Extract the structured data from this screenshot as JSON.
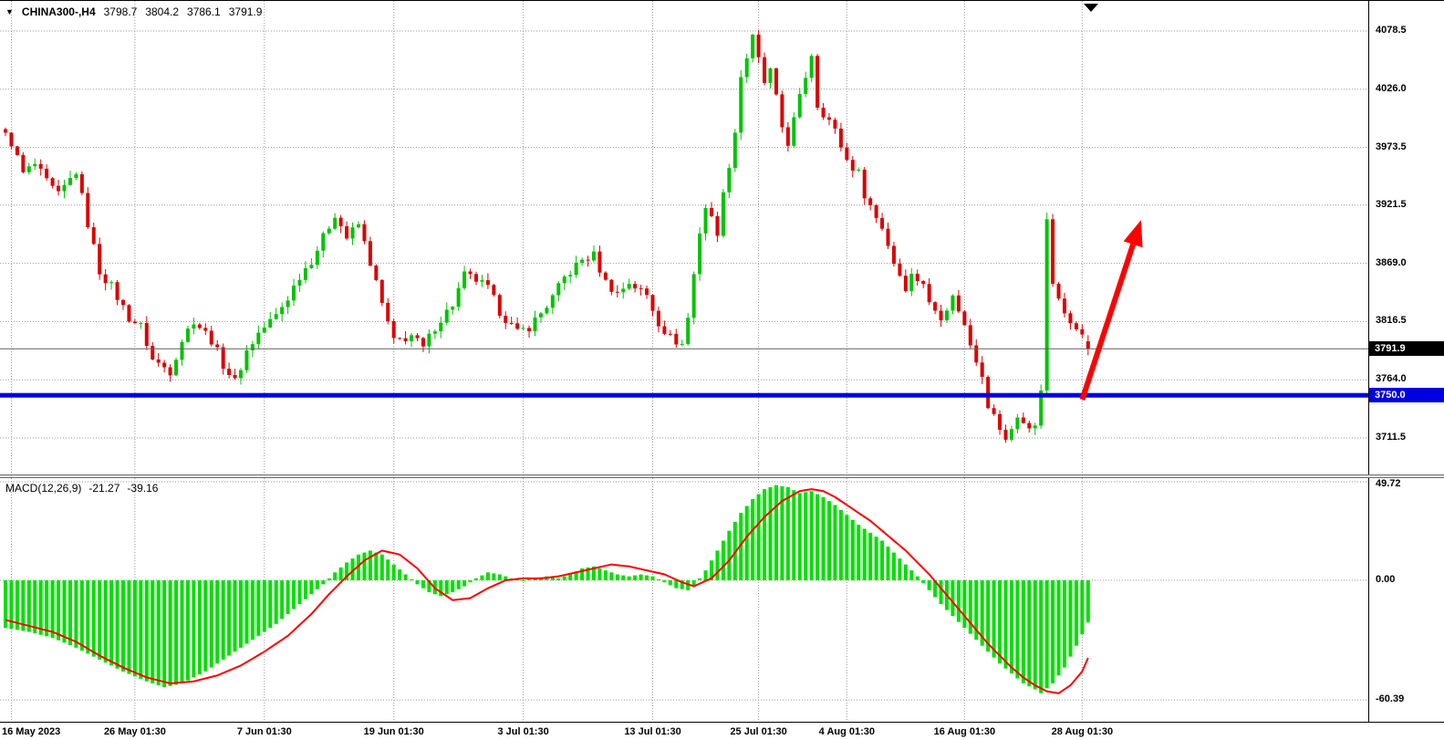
{
  "header": {
    "marker": "▼",
    "symbol": "CHINA300-,H4",
    "open": "3798.7",
    "high": "3804.2",
    "low": "3786.1",
    "close": "3791.9"
  },
  "tags": {
    "current_price": "3791.9",
    "support_price": "3750.0"
  },
  "macd_label": {
    "name": "MACD(12,26,9)",
    "main": "-21.27",
    "signal": "-39.16"
  },
  "colors": {
    "bull": "#00c400",
    "bear": "#dd0000",
    "macd_hist": "#00e000",
    "macd_signal": "#ff0000",
    "support_line": "#0000e0",
    "current_tag_bg": "#000000",
    "arrow": "#ff0000",
    "grid": "#9a9a9a",
    "current_price_line": "#606060"
  },
  "chart_data": [
    {
      "type": "candlestick",
      "symbol": "CHINA300-",
      "timeframe": "H4",
      "title": "CHINA300- 4-hour candlestick chart, 16 May 2023 to 28 Aug 2023",
      "num_candles": 185,
      "ylim": [
        3685,
        4105
      ],
      "y_axis_ticks": [
        {
          "v": 4078.5,
          "text": "4078.5"
        },
        {
          "v": 4026.0,
          "text": "4026.0"
        },
        {
          "v": 3973.5,
          "text": "3973.5"
        },
        {
          "v": 3921.5,
          "text": "3921.5"
        },
        {
          "v": 3869.0,
          "text": "3869.0"
        },
        {
          "v": 3816.5,
          "text": "3816.5"
        },
        {
          "v": 3764.0,
          "text": "3764.0"
        },
        {
          "v": 3711.5,
          "text": "3711.5"
        }
      ],
      "x_axis_ticks": [
        {
          "label": "16 May 2023",
          "i": 1
        },
        {
          "label": "26 May 01:30",
          "i": 22
        },
        {
          "label": "7 Jun 01:30",
          "i": 44
        },
        {
          "label": "19 Jun 01:30",
          "i": 66
        },
        {
          "label": "3 Jul 01:30",
          "i": 88
        },
        {
          "label": "13 Jul 01:30",
          "i": 110
        },
        {
          "label": "25 Jul 01:30",
          "i": 128
        },
        {
          "label": "4 Aug 01:30",
          "i": 143
        },
        {
          "label": "16 Aug 01:30",
          "i": 163
        },
        {
          "label": "28 Aug 01:30",
          "i": 183
        }
      ],
      "last_candle_ohlc": {
        "open": 3798.7,
        "high": 3804.2,
        "low": 3786.1,
        "close": 3791.9
      },
      "current_price": 3791.9,
      "support_line_price": 3750.0,
      "session_high": 4090,
      "session_low": 3695,
      "grid": "dotted",
      "price_path_waypoints": [
        [
          0,
          3990
        ],
        [
          2,
          3978
        ],
        [
          4,
          3950
        ],
        [
          6,
          3958
        ],
        [
          8,
          3942
        ],
        [
          10,
          3930
        ],
        [
          13,
          3952
        ],
        [
          15,
          3905
        ],
        [
          17,
          3862
        ],
        [
          19,
          3848
        ],
        [
          22,
          3820
        ],
        [
          24,
          3812
        ],
        [
          26,
          3782
        ],
        [
          29,
          3772
        ],
        [
          31,
          3800
        ],
        [
          33,
          3818
        ],
        [
          36,
          3800
        ],
        [
          38,
          3778
        ],
        [
          40,
          3762
        ],
        [
          42,
          3790
        ],
        [
          44,
          3806
        ],
        [
          47,
          3822
        ],
        [
          49,
          3838
        ],
        [
          51,
          3858
        ],
        [
          53,
          3872
        ],
        [
          55,
          3892
        ],
        [
          57,
          3914
        ],
        [
          59,
          3892
        ],
        [
          61,
          3904
        ],
        [
          63,
          3870
        ],
        [
          65,
          3832
        ],
        [
          67,
          3798
        ],
        [
          70,
          3804
        ],
        [
          72,
          3792
        ],
        [
          74,
          3812
        ],
        [
          77,
          3832
        ],
        [
          79,
          3858
        ],
        [
          81,
          3854
        ],
        [
          83,
          3846
        ],
        [
          85,
          3826
        ],
        [
          88,
          3806
        ],
        [
          90,
          3812
        ],
        [
          92,
          3824
        ],
        [
          94,
          3838
        ],
        [
          96,
          3856
        ],
        [
          99,
          3872
        ],
        [
          101,
          3876
        ],
        [
          103,
          3852
        ],
        [
          105,
          3842
        ],
        [
          107,
          3852
        ],
        [
          110,
          3840
        ],
        [
          112,
          3816
        ],
        [
          114,
          3802
        ],
        [
          116,
          3796
        ],
        [
          117,
          3820
        ],
        [
          119,
          3898
        ],
        [
          120,
          3920
        ],
        [
          122,
          3898
        ],
        [
          123,
          3930
        ],
        [
          125,
          3988
        ],
        [
          126,
          4038
        ],
        [
          128,
          4072
        ],
        [
          130,
          4032
        ],
        [
          131,
          4042
        ],
        [
          133,
          3992
        ],
        [
          134,
          3978
        ],
        [
          136,
          4018
        ],
        [
          138,
          4058
        ],
        [
          139,
          4012
        ],
        [
          141,
          3998
        ],
        [
          142,
          3988
        ],
        [
          144,
          3962
        ],
        [
          146,
          3950
        ],
        [
          147,
          3932
        ],
        [
          149,
          3910
        ],
        [
          150,
          3902
        ],
        [
          152,
          3870
        ],
        [
          154,
          3848
        ],
        [
          155,
          3858
        ],
        [
          157,
          3852
        ],
        [
          158,
          3832
        ],
        [
          160,
          3822
        ],
        [
          162,
          3838
        ],
        [
          163,
          3828
        ],
        [
          165,
          3796
        ],
        [
          167,
          3770
        ],
        [
          168,
          3742
        ],
        [
          170,
          3720
        ],
        [
          171,
          3708
        ],
        [
          173,
          3732
        ],
        [
          175,
          3718
        ],
        [
          176,
          3724
        ],
        [
          177,
          3758
        ],
        [
          178,
          3905
        ],
        [
          179,
          3852
        ],
        [
          180,
          3834
        ],
        [
          181,
          3824
        ],
        [
          183,
          3814
        ],
        [
          185,
          3792
        ]
      ],
      "arrow_annotation": {
        "description": "red up-arrow projecting bounce from 3750 support toward 3908",
        "from": {
          "i": 183,
          "price": 3746
        },
        "to": {
          "i": 193,
          "price": 3908
        }
      },
      "autoscroll_marker_i": 184.5
    },
    {
      "type": "macd",
      "indicator": "MACD(12,26,9)",
      "main_value": -21.27,
      "signal_value": -39.16,
      "ylim": [
        -66,
        53
      ],
      "y_axis_ticks": [
        {
          "v": 49.72,
          "text": "49.72"
        },
        {
          "v": 0,
          "text": "0.00"
        },
        {
          "v": -60.39,
          "text": "-60.39"
        }
      ],
      "histogram_waypoints": [
        [
          0,
          -24
        ],
        [
          4,
          -26
        ],
        [
          8,
          -29
        ],
        [
          12,
          -34
        ],
        [
          16,
          -40
        ],
        [
          20,
          -46
        ],
        [
          24,
          -51
        ],
        [
          27,
          -54
        ],
        [
          30,
          -52
        ],
        [
          34,
          -46
        ],
        [
          38,
          -38
        ],
        [
          42,
          -30
        ],
        [
          46,
          -22
        ],
        [
          50,
          -12
        ],
        [
          54,
          -2
        ],
        [
          56,
          4
        ],
        [
          58,
          9
        ],
        [
          60,
          13
        ],
        [
          62,
          15
        ],
        [
          64,
          13
        ],
        [
          66,
          8
        ],
        [
          68,
          3
        ],
        [
          70,
          -2
        ],
        [
          72,
          -6
        ],
        [
          74,
          -8
        ],
        [
          76,
          -6
        ],
        [
          78,
          -3
        ],
        [
          80,
          1
        ],
        [
          82,
          4
        ],
        [
          84,
          3
        ],
        [
          86,
          1
        ],
        [
          88,
          0
        ],
        [
          90,
          1
        ],
        [
          92,
          2
        ],
        [
          94,
          1
        ],
        [
          96,
          3
        ],
        [
          98,
          6
        ],
        [
          100,
          7
        ],
        [
          102,
          5
        ],
        [
          104,
          3
        ],
        [
          106,
          2
        ],
        [
          108,
          3
        ],
        [
          110,
          2
        ],
        [
          112,
          -1
        ],
        [
          114,
          -4
        ],
        [
          116,
          -5
        ],
        [
          117,
          -3
        ],
        [
          119,
          5
        ],
        [
          121,
          15
        ],
        [
          123,
          25
        ],
        [
          125,
          34
        ],
        [
          127,
          41
        ],
        [
          129,
          46
        ],
        [
          131,
          48
        ],
        [
          133,
          47
        ],
        [
          135,
          44
        ],
        [
          137,
          45
        ],
        [
          139,
          42
        ],
        [
          141,
          38
        ],
        [
          143,
          33
        ],
        [
          145,
          28
        ],
        [
          147,
          24
        ],
        [
          149,
          20
        ],
        [
          151,
          14
        ],
        [
          153,
          8
        ],
        [
          155,
          2
        ],
        [
          157,
          -5
        ],
        [
          159,
          -12
        ],
        [
          161,
          -18
        ],
        [
          163,
          -24
        ],
        [
          165,
          -30
        ],
        [
          167,
          -36
        ],
        [
          169,
          -42
        ],
        [
          171,
          -47
        ],
        [
          173,
          -52
        ],
        [
          175,
          -55
        ],
        [
          176,
          -57
        ],
        [
          178,
          -52
        ],
        [
          180,
          -44
        ],
        [
          182,
          -33
        ],
        [
          184,
          -21.27
        ]
      ],
      "signal_waypoints": [
        [
          0,
          -20
        ],
        [
          4,
          -23
        ],
        [
          8,
          -26
        ],
        [
          12,
          -31
        ],
        [
          16,
          -38
        ],
        [
          20,
          -44
        ],
        [
          24,
          -49
        ],
        [
          28,
          -52
        ],
        [
          32,
          -51
        ],
        [
          36,
          -48
        ],
        [
          40,
          -43
        ],
        [
          44,
          -36
        ],
        [
          48,
          -28
        ],
        [
          52,
          -17
        ],
        [
          55,
          -7
        ],
        [
          58,
          2
        ],
        [
          61,
          10
        ],
        [
          64,
          15
        ],
        [
          67,
          13
        ],
        [
          70,
          6
        ],
        [
          73,
          -4
        ],
        [
          76,
          -10
        ],
        [
          79,
          -9
        ],
        [
          82,
          -4
        ],
        [
          85,
          0
        ],
        [
          88,
          1
        ],
        [
          91,
          1
        ],
        [
          94,
          2
        ],
        [
          97,
          4
        ],
        [
          100,
          6
        ],
        [
          103,
          8
        ],
        [
          106,
          7
        ],
        [
          109,
          5
        ],
        [
          112,
          3
        ],
        [
          115,
          -1
        ],
        [
          117,
          -3
        ],
        [
          120,
          1
        ],
        [
          123,
          10
        ],
        [
          126,
          22
        ],
        [
          129,
          32
        ],
        [
          132,
          40
        ],
        [
          135,
          45
        ],
        [
          137,
          46
        ],
        [
          139,
          45
        ],
        [
          141,
          42
        ],
        [
          143,
          38
        ],
        [
          145,
          34
        ],
        [
          147,
          30
        ],
        [
          149,
          25
        ],
        [
          151,
          20
        ],
        [
          153,
          15
        ],
        [
          155,
          9
        ],
        [
          157,
          3
        ],
        [
          159,
          -4
        ],
        [
          161,
          -11
        ],
        [
          163,
          -18
        ],
        [
          165,
          -25
        ],
        [
          167,
          -32
        ],
        [
          169,
          -38
        ],
        [
          171,
          -44
        ],
        [
          173,
          -49
        ],
        [
          175,
          -53
        ],
        [
          177,
          -56
        ],
        [
          179,
          -57
        ],
        [
          181,
          -53
        ],
        [
          183,
          -46
        ],
        [
          184,
          -39.16
        ]
      ]
    }
  ]
}
